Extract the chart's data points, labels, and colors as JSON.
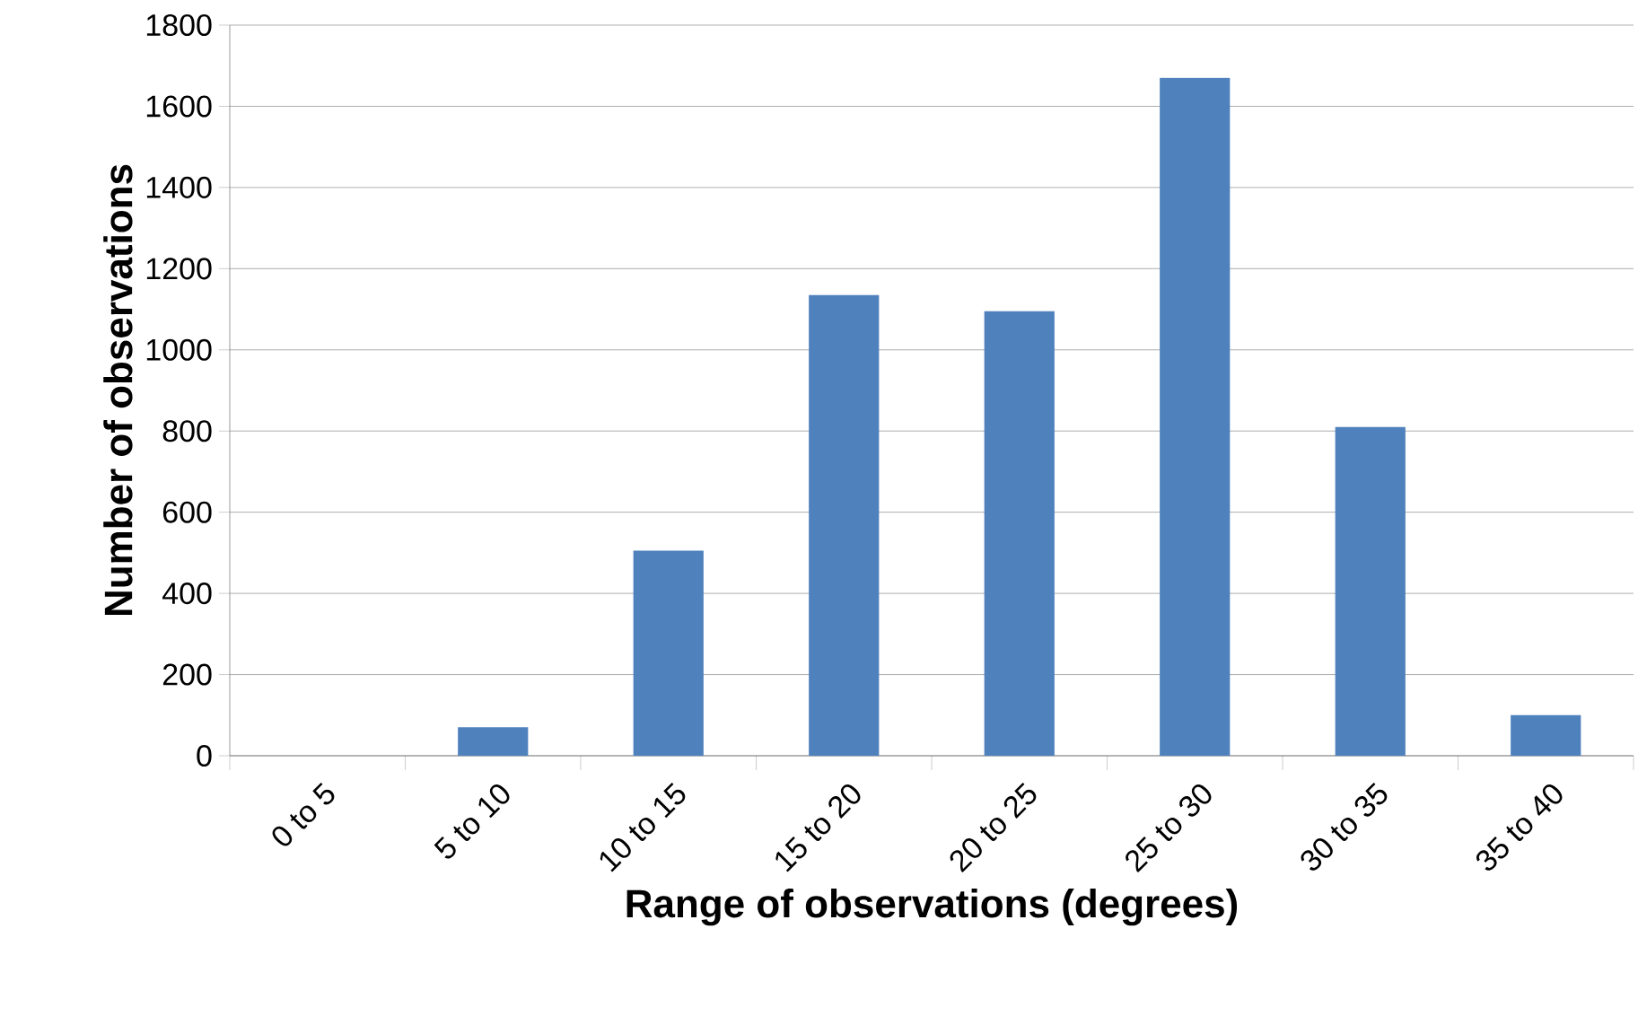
{
  "chart_data": {
    "type": "bar",
    "xlabel": "Range of observations (degrees)",
    "ylabel": "Number of observations",
    "categories": [
      "0 to 5",
      "5 to 10",
      "10 to 15",
      "15 to 20",
      "20 to 25",
      "25 to 30",
      "30 to 35",
      "35 to 40"
    ],
    "values": [
      0,
      70,
      505,
      1135,
      1095,
      1670,
      810,
      100
    ],
    "color": "#4f81bd",
    "ylim": [
      0,
      1800
    ],
    "yticks": [
      0,
      200,
      400,
      600,
      800,
      1000,
      1200,
      1400,
      1600,
      1800
    ],
    "grid": "y"
  }
}
